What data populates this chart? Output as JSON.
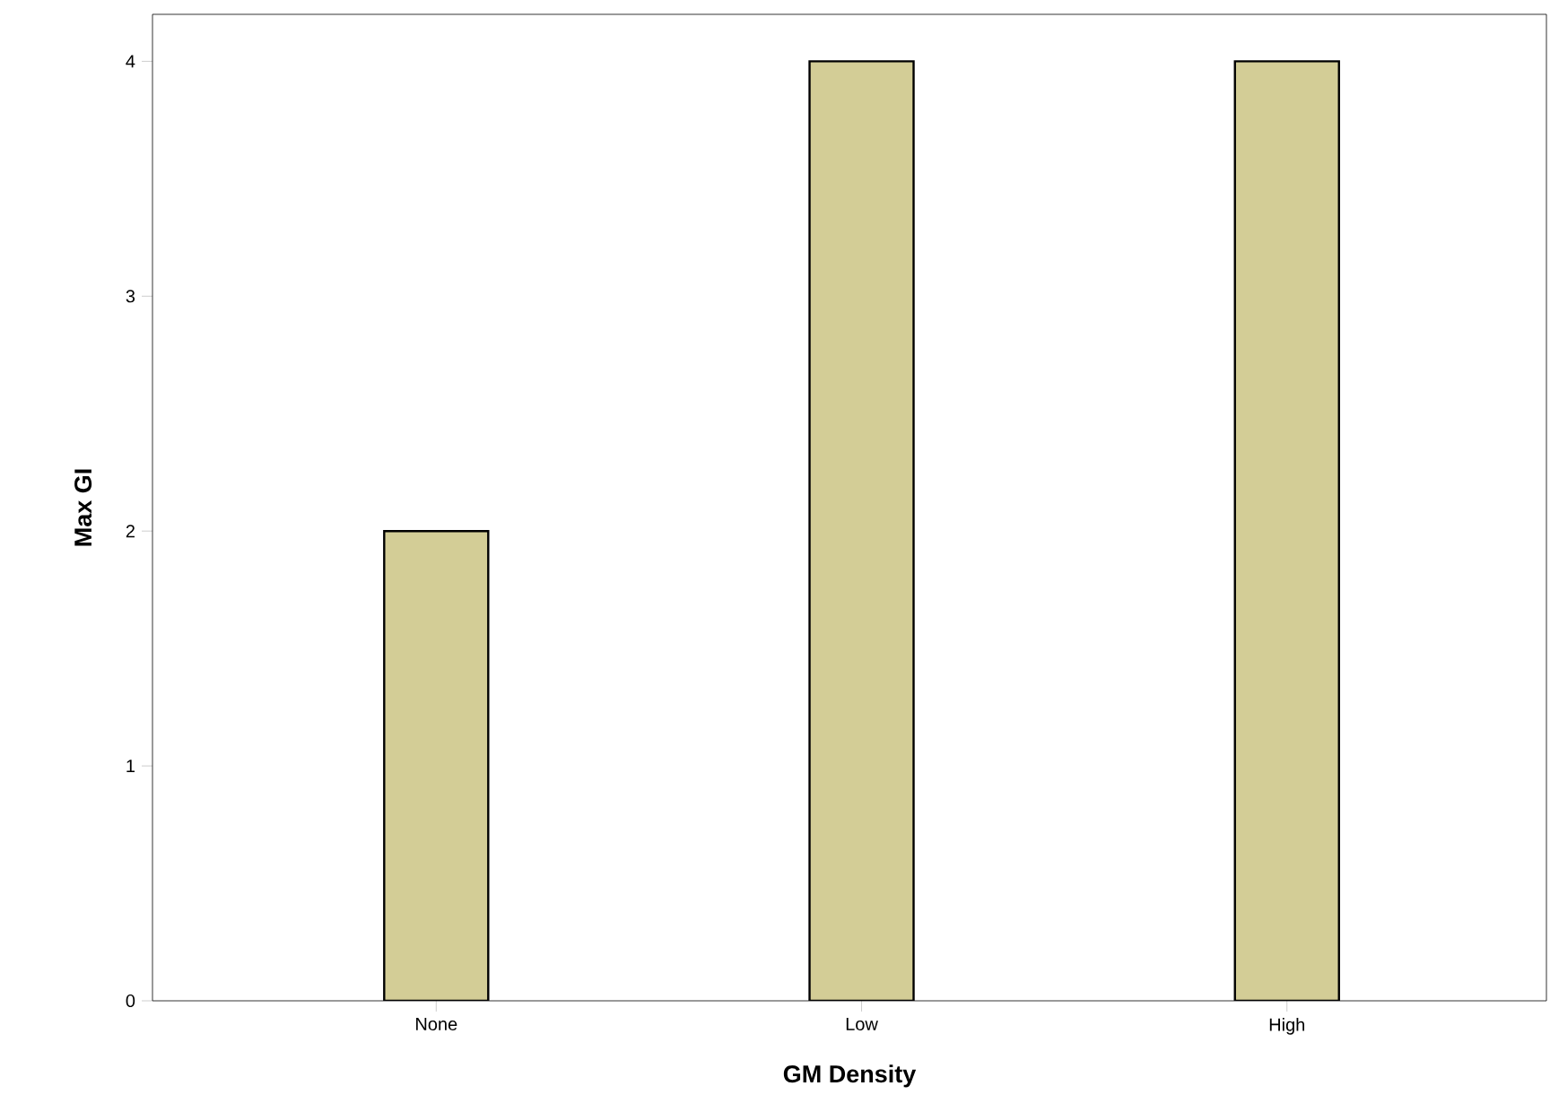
{
  "chart_data": {
    "type": "bar",
    "xlabel": "GM Density",
    "ylabel": "Max GI",
    "categories": [
      "None",
      "Low",
      "High"
    ],
    "values": [
      2,
      4,
      4
    ],
    "color": "#d3cd96",
    "ylim": [
      0,
      4.2
    ],
    "yticks": [
      0,
      1,
      2,
      3,
      4
    ],
    "grid": false
  }
}
